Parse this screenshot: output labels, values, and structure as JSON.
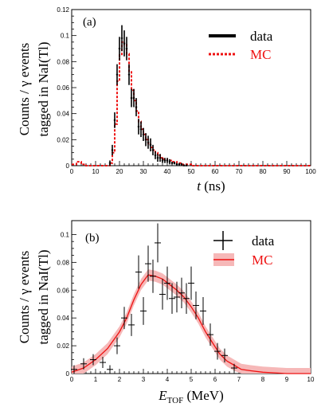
{
  "y_title_line1": "Counts / γ events",
  "y_title_line2": "tagged in NaI(Tl)",
  "chart_data": [
    {
      "type": "line",
      "panel_label": "(a)",
      "xlabel_italic": "t",
      "xlabel_rest": " (ns)",
      "xlim": [
        0,
        100
      ],
      "ylim": [
        0,
        0.12
      ],
      "xticks": [
        "0",
        "10",
        "20",
        "30",
        "40",
        "50",
        "60",
        "70",
        "80",
        "90",
        "100"
      ],
      "yticks": [
        "0",
        "0.02",
        "0.04",
        "0.06",
        "0.08",
        "0.1",
        "0.12"
      ],
      "legend": [
        {
          "label": "data",
          "color": "#000000"
        },
        {
          "label": "MC",
          "color": "#ee1111"
        }
      ],
      "series": [
        {
          "name": "data",
          "color": "#000000",
          "x": [
            16,
            17,
            18,
            19,
            20,
            21,
            22,
            23,
            24,
            25,
            26,
            27,
            28,
            29,
            30,
            31,
            32,
            33,
            34,
            35,
            36,
            37,
            38,
            39,
            40,
            41,
            42,
            43,
            44,
            45,
            46,
            47,
            48
          ],
          "y": [
            0.002,
            0.012,
            0.035,
            0.07,
            0.09,
            0.098,
            0.094,
            0.09,
            0.07,
            0.052,
            0.052,
            0.045,
            0.03,
            0.028,
            0.024,
            0.02,
            0.018,
            0.016,
            0.012,
            0.008,
            0.006,
            0.006,
            0.004,
            0.004,
            0.004,
            0.003,
            0.002,
            0.002,
            0.001,
            0.001,
            0.001,
            0.0,
            0.0
          ],
          "err": [
            0.002,
            0.004,
            0.006,
            0.008,
            0.009,
            0.01,
            0.01,
            0.009,
            0.008,
            0.007,
            0.007,
            0.007,
            0.006,
            0.006,
            0.005,
            0.005,
            0.005,
            0.005,
            0.004,
            0.003,
            0.003,
            0.003,
            0.002,
            0.002,
            0.002,
            0.002,
            0.001,
            0.001,
            0.001,
            0.001,
            0.001,
            0.001,
            0.001
          ]
        },
        {
          "name": "MC",
          "color": "#ee1111",
          "x": [
            0,
            2,
            4,
            6,
            8,
            10,
            12,
            14,
            16,
            17,
            18,
            19,
            20,
            21,
            22,
            23,
            24,
            25,
            26,
            27,
            28,
            29,
            30,
            31,
            32,
            33,
            34,
            35,
            36,
            37,
            38,
            40,
            42,
            44,
            46,
            48,
            50,
            60,
            70,
            80,
            90,
            100
          ],
          "y": [
            0.001,
            0.003,
            0.001,
            0.0,
            0.0,
            0.0,
            0.0,
            0.0,
            0.002,
            0.01,
            0.032,
            0.065,
            0.085,
            0.095,
            0.093,
            0.086,
            0.072,
            0.058,
            0.05,
            0.042,
            0.034,
            0.028,
            0.024,
            0.02,
            0.017,
            0.014,
            0.012,
            0.01,
            0.008,
            0.006,
            0.005,
            0.004,
            0.003,
            0.002,
            0.001,
            0.001,
            0.0,
            0.0,
            0.0,
            0.0,
            0.0,
            0.0
          ]
        }
      ]
    },
    {
      "type": "line",
      "panel_label": "(b)",
      "xlabel_italic": "E",
      "xlabel_sub": "TOF",
      "xlabel_rest": " (MeV)",
      "xlim": [
        0,
        10
      ],
      "ylim": [
        0,
        0.11
      ],
      "xticks": [
        "0",
        "1",
        "2",
        "3",
        "4",
        "5",
        "6",
        "7",
        "8",
        "9",
        "10"
      ],
      "yticks": [
        "0",
        "0.02",
        "0.04",
        "0.06",
        "0.08",
        "0.1"
      ],
      "legend": [
        {
          "label": "data",
          "color": "#000000"
        },
        {
          "label": "MC",
          "color": "#ee1111"
        }
      ],
      "series": [
        {
          "name": "data",
          "color": "#000000",
          "x": [
            0.1,
            0.5,
            0.9,
            1.3,
            1.6,
            1.9,
            2.2,
            2.5,
            2.8,
            3.0,
            3.2,
            3.4,
            3.6,
            3.8,
            4.0,
            4.2,
            4.4,
            4.6,
            4.8,
            5.0,
            5.2,
            5.5,
            5.8,
            6.1,
            6.4,
            6.8
          ],
          "y": [
            0.003,
            0.007,
            0.01,
            0.008,
            0.003,
            0.02,
            0.04,
            0.035,
            0.073,
            0.045,
            0.079,
            0.07,
            0.094,
            0.057,
            0.065,
            0.054,
            0.055,
            0.058,
            0.054,
            0.065,
            0.049,
            0.045,
            0.028,
            0.016,
            0.013,
            0.004
          ],
          "err": [
            0.003,
            0.004,
            0.004,
            0.004,
            0.003,
            0.006,
            0.008,
            0.008,
            0.012,
            0.01,
            0.013,
            0.012,
            0.014,
            0.011,
            0.012,
            0.011,
            0.011,
            0.011,
            0.011,
            0.012,
            0.01,
            0.01,
            0.008,
            0.006,
            0.005,
            0.003
          ]
        },
        {
          "name": "MC",
          "color": "#ee1111",
          "x": [
            0,
            0.5,
            1.0,
            1.5,
            2.0,
            2.3,
            2.6,
            2.9,
            3.2,
            3.5,
            3.8,
            4.1,
            4.4,
            4.7,
            5.0,
            5.3,
            5.6,
            5.9,
            6.2,
            6.5,
            6.8,
            7.1,
            7.5,
            8.0,
            9.0,
            10.0
          ],
          "y": [
            0.001,
            0.004,
            0.01,
            0.018,
            0.03,
            0.04,
            0.053,
            0.064,
            0.071,
            0.07,
            0.068,
            0.064,
            0.06,
            0.055,
            0.048,
            0.04,
            0.03,
            0.022,
            0.014,
            0.009,
            0.006,
            0.003,
            0.002,
            0.001,
            0.0,
            0.0
          ],
          "band": 0.004
        }
      ]
    }
  ]
}
